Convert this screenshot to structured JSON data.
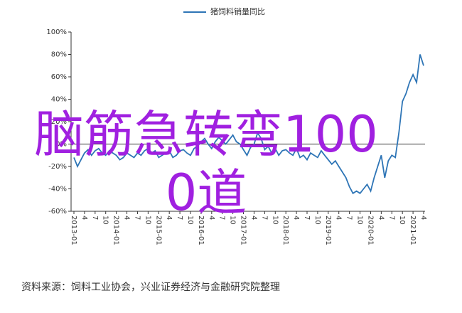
{
  "chart_data": {
    "type": "line",
    "title": "猪饲料销量同比",
    "source": "资料来源：饲料工业协会，兴业证券经济与金融研究院整理",
    "categories": [
      "2013-01",
      null,
      null,
      "4",
      null,
      null,
      "7",
      null,
      null,
      "10",
      null,
      null,
      "2014-01",
      null,
      null,
      "4",
      null,
      null,
      "7",
      null,
      null,
      "10",
      null,
      null,
      "2015-01",
      null,
      null,
      "4",
      null,
      null,
      "7",
      null,
      null,
      "10",
      null,
      null,
      "2016-01",
      null,
      null,
      "4",
      null,
      null,
      "7",
      null,
      null,
      "10",
      null,
      null,
      "2017-01",
      null,
      null,
      "4",
      null,
      null,
      "7",
      null,
      null,
      "10",
      null,
      null,
      "2018-01",
      null,
      null,
      "4",
      null,
      null,
      "7",
      null,
      null,
      "10",
      null,
      null,
      "2019-01",
      null,
      null,
      "4",
      null,
      null,
      "7",
      null,
      null,
      "10",
      null,
      null,
      "2020-01",
      null,
      null,
      "4",
      null,
      null,
      "7",
      null,
      null,
      "10",
      null,
      null,
      "2021-01",
      null,
      null,
      "4"
    ],
    "series": [
      {
        "name": "猪饲料销量同比",
        "color": "#2e75b6",
        "values": [
          -12,
          -20,
          -14,
          -8,
          -5,
          -10,
          -6,
          -4,
          -8,
          -10,
          -6,
          -8,
          -10,
          -14,
          -12,
          -8,
          -10,
          -12,
          -8,
          -10,
          -6,
          -4,
          -8,
          -6,
          -12,
          -10,
          -8,
          -6,
          -12,
          -10,
          -6,
          -5,
          -8,
          -10,
          -4,
          -2,
          2,
          5,
          0,
          -4,
          2,
          6,
          3,
          0,
          4,
          8,
          2,
          0,
          -5,
          -10,
          -3,
          0,
          10,
          5,
          -5,
          -2,
          -8,
          -4,
          -10,
          -6,
          -5,
          -8,
          -10,
          -4,
          -12,
          -10,
          -14,
          -8,
          -10,
          -12,
          -6,
          -10,
          -14,
          -18,
          -15,
          -20,
          -25,
          -30,
          -38,
          -44,
          -42,
          -44,
          -40,
          -36,
          -42,
          -30,
          -20,
          -10,
          -30,
          -15,
          -10,
          -12,
          10,
          38,
          45,
          55,
          62,
          55,
          80,
          70
        ]
      }
    ],
    "ylim": [
      -60,
      100
    ],
    "yticks": [
      {
        "value": -60,
        "label": "-60%"
      },
      {
        "value": -40,
        "label": "-40%"
      },
      {
        "value": -20,
        "label": "-20%"
      },
      {
        "value": 0,
        "label": "0%"
      },
      {
        "value": 20,
        "label": "20%"
      },
      {
        "value": 40,
        "label": "40%"
      },
      {
        "value": 60,
        "label": "60%"
      },
      {
        "value": 80,
        "label": "80%"
      },
      {
        "value": 100,
        "label": "100%"
      }
    ],
    "zero_line": true
  },
  "overlay": {
    "text": "脑筋急转弯1000道",
    "color": "#a020e0"
  }
}
